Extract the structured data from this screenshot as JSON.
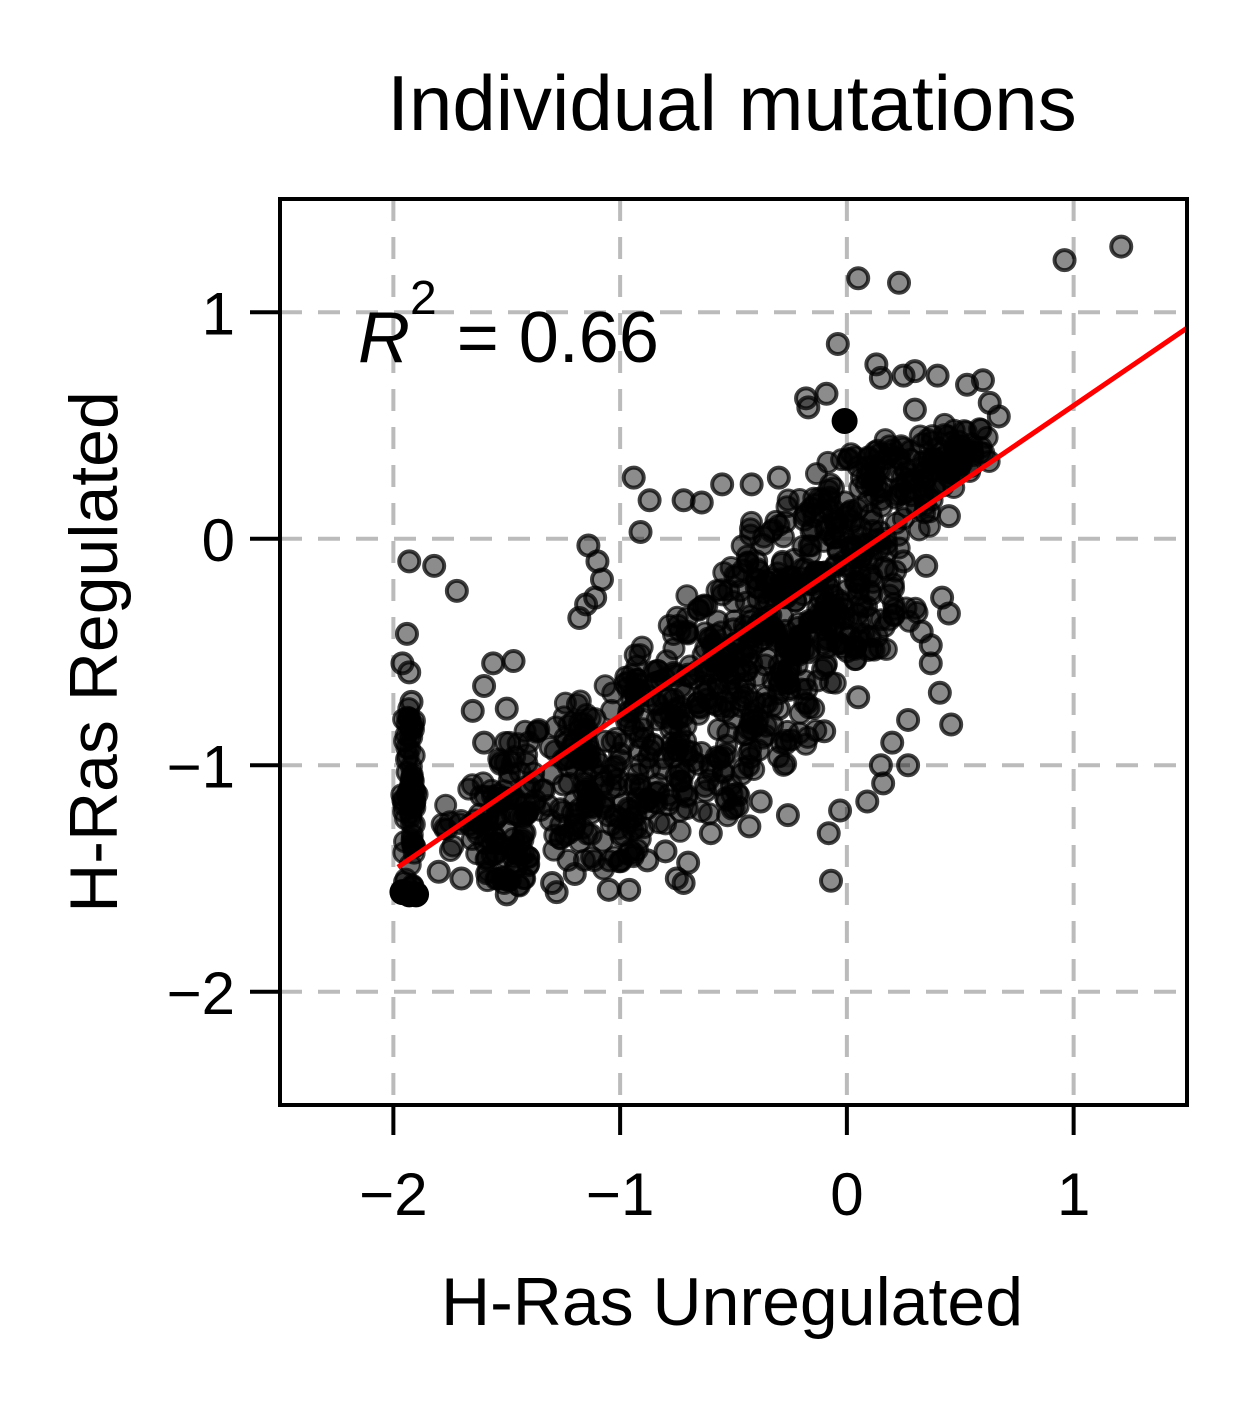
{
  "chart_data": {
    "type": "scatter",
    "title": "Individual mutations",
    "xlabel": "H-Ras Unregulated",
    "ylabel": "H-Ras Regulated",
    "xlim": [
      -2.5,
      1.5
    ],
    "ylim": [
      -2.5,
      1.5
    ],
    "xticks": [
      -2,
      -1,
      0,
      1
    ],
    "yticks": [
      -2,
      -1,
      0,
      1
    ],
    "xtick_labels": [
      "−2",
      "−1",
      "0",
      "1"
    ],
    "ytick_labels": [
      "−2",
      "−1",
      "0",
      "1"
    ],
    "grid": true,
    "grid_style": "dashed",
    "annotation": {
      "r2_label": "R",
      "r2_exp": "2",
      "r2_value": " = 0.66",
      "r2": 0.66
    },
    "fit_line": {
      "x": [
        -1.98,
        1.5
      ],
      "y": [
        -1.45,
        0.93
      ],
      "color": "#ff0000"
    },
    "marker_color": "#000000",
    "grid_color": "#bbbbbb",
    "points": [
      [
        1.21,
        1.29
      ],
      [
        0.96,
        1.23
      ],
      [
        0.05,
        1.15
      ],
      [
        0.23,
        1.13
      ],
      [
        -0.04,
        0.86
      ],
      [
        0.13,
        0.77
      ],
      [
        0.15,
        0.71
      ],
      [
        0.25,
        0.72
      ],
      [
        0.3,
        0.74
      ],
      [
        0.4,
        0.72
      ],
      [
        0.53,
        0.68
      ],
      [
        0.6,
        0.7
      ],
      [
        -0.18,
        0.62
      ],
      [
        -0.09,
        0.64
      ],
      [
        -0.17,
        0.58
      ],
      [
        0.3,
        0.57
      ],
      [
        0.63,
        0.6
      ],
      [
        0.67,
        0.54
      ],
      [
        -0.94,
        0.27
      ],
      [
        -0.55,
        0.24
      ],
      [
        -0.72,
        0.17
      ],
      [
        -0.87,
        0.17
      ],
      [
        -0.64,
        0.16
      ],
      [
        -0.42,
        0.24
      ],
      [
        -0.3,
        0.27
      ],
      [
        -0.91,
        0.03
      ],
      [
        -1.14,
        -0.03
      ],
      [
        -1.1,
        -0.1
      ],
      [
        -1.08,
        -0.18
      ],
      [
        -1.11,
        -0.26
      ],
      [
        -1.93,
        -0.1
      ],
      [
        -1.82,
        -0.12
      ],
      [
        -1.72,
        -0.23
      ],
      [
        -1.15,
        -0.29
      ],
      [
        -1.18,
        -0.35
      ],
      [
        -1.94,
        -0.42
      ],
      [
        -1.96,
        -0.55
      ],
      [
        -1.93,
        -0.59
      ],
      [
        -1.92,
        -0.72
      ],
      [
        -1.56,
        -0.55
      ],
      [
        -1.47,
        -0.54
      ],
      [
        -1.6,
        -0.65
      ],
      [
        -1.5,
        -0.75
      ],
      [
        -1.65,
        -0.76
      ],
      [
        -1.6,
        -0.9
      ],
      [
        0.35,
        -0.12
      ],
      [
        0.42,
        -0.26
      ],
      [
        0.45,
        -0.33
      ],
      [
        0.33,
        -0.41
      ],
      [
        0.37,
        -0.47
      ],
      [
        0.37,
        -0.55
      ],
      [
        0.41,
        -0.68
      ],
      [
        0.46,
        -0.82
      ],
      [
        0.27,
        -0.8
      ],
      [
        0.2,
        -0.9
      ],
      [
        0.27,
        -1.0
      ],
      [
        0.15,
        -1.0
      ],
      [
        0.16,
        -1.08
      ],
      [
        0.09,
        -1.16
      ],
      [
        -0.03,
        -1.2
      ],
      [
        -0.26,
        -1.22
      ],
      [
        -0.08,
        -1.3
      ],
      [
        -0.38,
        -1.16
      ],
      [
        -0.43,
        -1.27
      ],
      [
        -0.6,
        -1.3
      ],
      [
        -0.8,
        -1.38
      ],
      [
        -0.88,
        -1.42
      ],
      [
        -0.7,
        -1.43
      ],
      [
        -0.75,
        -1.5
      ],
      [
        -0.72,
        -1.52
      ],
      [
        -0.07,
        -1.51
      ],
      [
        -1.2,
        -1.48
      ],
      [
        -1.3,
        -1.52
      ],
      [
        -1.52,
        -1.5
      ],
      [
        -1.7,
        -1.5
      ],
      [
        -1.28,
        -1.56
      ],
      [
        -1.05,
        -1.55
      ],
      [
        -0.96,
        -1.55
      ],
      [
        -1.8,
        -1.47
      ],
      [
        -1.5,
        -1.57
      ],
      [
        -0.4,
        -0.1
      ],
      [
        -0.35,
        -0.3
      ],
      [
        -0.2,
        -0.45
      ],
      [
        0.05,
        -0.7
      ],
      [
        -0.1,
        -0.85
      ],
      [
        0.1,
        -0.35
      ],
      [
        0.25,
        -0.1
      ],
      [
        0.5,
        0.35
      ],
      [
        0.45,
        0.1
      ],
      [
        -0.5,
        -0.4
      ],
      [
        -0.7,
        -0.6
      ],
      [
        -0.9,
        -0.8
      ],
      [
        -1.2,
        -0.9
      ],
      [
        -1.4,
        -1.1
      ],
      [
        -1.0,
        -0.95
      ],
      [
        -0.6,
        -1.0
      ],
      [
        -0.3,
        -0.75
      ],
      [
        -0.15,
        -0.2
      ],
      [
        0.0,
        0.1
      ],
      [
        0.2,
        0.3
      ]
    ],
    "cloud": [
      {
        "c": [
          -0.15,
          -0.05
        ],
        "r": 0.32
      },
      {
        "c": [
          0.1,
          0.15
        ],
        "r": 0.3
      },
      {
        "c": [
          0.3,
          0.3
        ],
        "r": 0.22
      },
      {
        "c": [
          0.5,
          0.4
        ],
        "r": 0.15
      },
      {
        "c": [
          -0.45,
          -0.35
        ],
        "r": 0.3
      },
      {
        "c": [
          -0.7,
          -0.6
        ],
        "r": 0.3
      },
      {
        "c": [
          -1.0,
          -0.85
        ],
        "r": 0.3
      },
      {
        "c": [
          -1.3,
          -1.05
        ],
        "r": 0.3
      },
      {
        "c": [
          -1.6,
          -1.25
        ],
        "r": 0.22
      },
      {
        "c": [
          -0.2,
          -0.45
        ],
        "r": 0.28
      },
      {
        "c": [
          0.05,
          -0.3
        ],
        "r": 0.28
      },
      {
        "c": [
          -0.4,
          -0.8
        ],
        "r": 0.28
      },
      {
        "c": [
          -0.7,
          -1.1
        ],
        "r": 0.25
      },
      {
        "c": [
          -1.1,
          -1.3
        ],
        "r": 0.22
      },
      {
        "c": [
          -1.5,
          -1.45
        ],
        "r": 0.12
      },
      {
        "c": [
          -1.93,
          -1.15
        ],
        "r": 0.06
      }
    ],
    "solid_dots": [
      [
        -1.93,
        -1.57
      ],
      [
        -1.96,
        -1.56
      ],
      [
        -1.9,
        -1.57
      ],
      [
        -0.01,
        0.52
      ]
    ]
  }
}
